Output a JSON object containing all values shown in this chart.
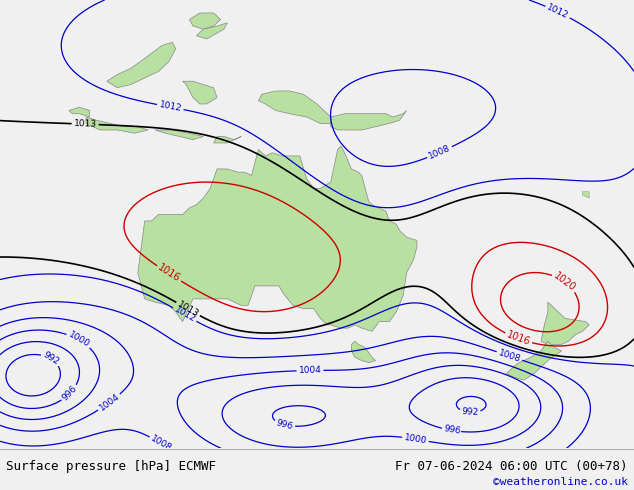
{
  "title_left": "Surface pressure [hPa] ECMWF",
  "title_right": "Fr 07-06-2024 06:00 UTC (00+78)",
  "credit": "©weatheronline.co.uk",
  "bg_color": "#c8d4e8",
  "land_color": "#b8e0a0",
  "border_color": "#888888",
  "text_color_black": "#000000",
  "text_color_blue": "#0000cc",
  "text_color_red": "#cc0000",
  "text_color_credit": "#0000cc",
  "bottom_bar_color": "#f0f0f0",
  "figsize": [
    6.34,
    4.9
  ],
  "dpi": 100,
  "xlim": [
    93,
    185
  ],
  "ylim": [
    -57,
    12
  ]
}
